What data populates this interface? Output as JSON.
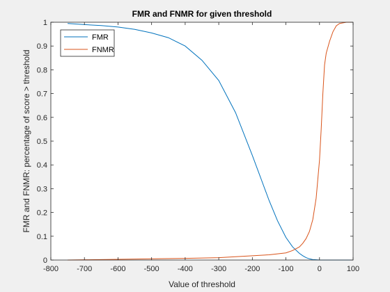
{
  "chart_data": {
    "type": "line",
    "title": "FMR and FNMR for given threshold",
    "xlabel": "Value of threshold",
    "ylabel": "FMR and FNMR: percentage of score > threshold",
    "xlim": [
      -800,
      100
    ],
    "ylim": [
      0,
      1
    ],
    "xticks": [
      -800,
      -700,
      -600,
      -500,
      -400,
      -300,
      -200,
      -100,
      0,
      100
    ],
    "yticks": [
      0,
      0.1,
      0.2,
      0.3,
      0.4,
      0.5,
      0.6,
      0.7,
      0.8,
      0.9,
      1
    ],
    "grid": false,
    "legend_position": "top-left",
    "series": [
      {
        "name": "FMR",
        "color": "#0072BD",
        "x": [
          -750,
          -700,
          -650,
          -600,
          -550,
          -500,
          -450,
          -400,
          -350,
          -300,
          -250,
          -200,
          -175,
          -150,
          -125,
          -100,
          -80,
          -60,
          -50,
          -40,
          -30,
          -20,
          -10,
          0,
          10,
          20,
          50,
          100
        ],
        "y": [
          0.995,
          0.99,
          0.986,
          0.98,
          0.97,
          0.955,
          0.935,
          0.9,
          0.84,
          0.755,
          0.62,
          0.44,
          0.345,
          0.25,
          0.165,
          0.095,
          0.055,
          0.028,
          0.018,
          0.01,
          0.005,
          0.002,
          0.001,
          0.0,
          0.0,
          0.0,
          0.0,
          0.0
        ]
      },
      {
        "name": "FNMR",
        "color": "#D95319",
        "x": [
          -750,
          -700,
          -600,
          -500,
          -400,
          -300,
          -200,
          -150,
          -100,
          -80,
          -60,
          -50,
          -40,
          -30,
          -20,
          -10,
          0,
          5,
          10,
          15,
          20,
          30,
          40,
          50,
          60,
          80,
          100
        ],
        "y": [
          0.0,
          0.001,
          0.003,
          0.005,
          0.007,
          0.01,
          0.018,
          0.022,
          0.03,
          0.04,
          0.055,
          0.07,
          0.09,
          0.12,
          0.17,
          0.26,
          0.42,
          0.55,
          0.7,
          0.82,
          0.87,
          0.92,
          0.96,
          0.985,
          0.995,
          1.0,
          1.0
        ]
      }
    ]
  }
}
